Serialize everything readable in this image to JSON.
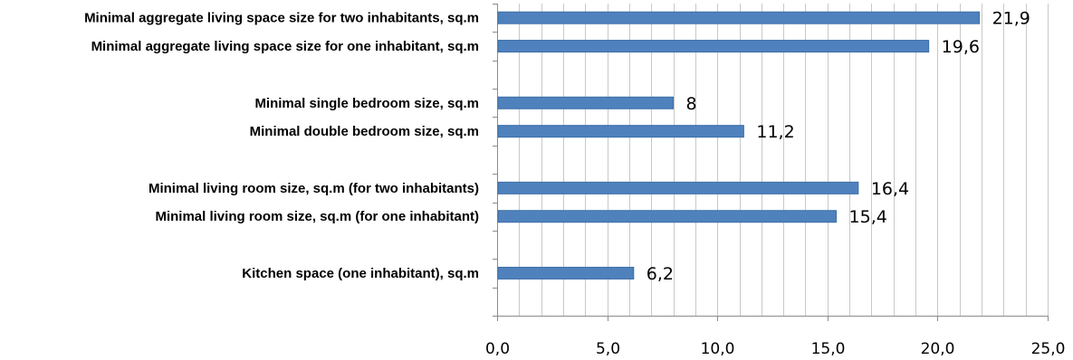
{
  "chart_data": {
    "type": "bar",
    "orientation": "horizontal",
    "title": "",
    "xlabel": "",
    "ylabel": "",
    "xlim": [
      0,
      25
    ],
    "x_ticks": [
      0,
      5,
      10,
      15,
      20,
      25
    ],
    "x_tick_labels": [
      "0,0",
      "5,0",
      "10,0",
      "15,0",
      "20,0",
      "25,0"
    ],
    "grid": "vertical",
    "grid_minor_step": 1,
    "legend": "none",
    "bar_color": "#4f81bd",
    "category_slots": 11,
    "categories": [
      {
        "label": "Minimal aggregate living space size for two inhabitants, sq.m",
        "value": 21.9,
        "value_label": "21,9",
        "slot": 0
      },
      {
        "label": "Minimal aggregate living space size for one inhabitant, sq.m",
        "value": 19.6,
        "value_label": "19,6",
        "slot": 1
      },
      {
        "label": "Minimal single bedroom size, sq.m",
        "value": 8,
        "value_label": "8",
        "slot": 3
      },
      {
        "label": "Minimal double bedroom size, sq.m",
        "value": 11.2,
        "value_label": "11,2",
        "slot": 4
      },
      {
        "label": "Minimal living room size, sq.m (for two inhabitants)",
        "value": 16.4,
        "value_label": "16,4",
        "slot": 6
      },
      {
        "label": "Minimal living room size, sq.m (for one inhabitant)",
        "value": 15.4,
        "value_label": "15,4",
        "slot": 7
      },
      {
        "label": "Kitchen space (one inhabitant), sq.m",
        "value": 6.2,
        "value_label": "6,2",
        "slot": 9
      }
    ]
  }
}
